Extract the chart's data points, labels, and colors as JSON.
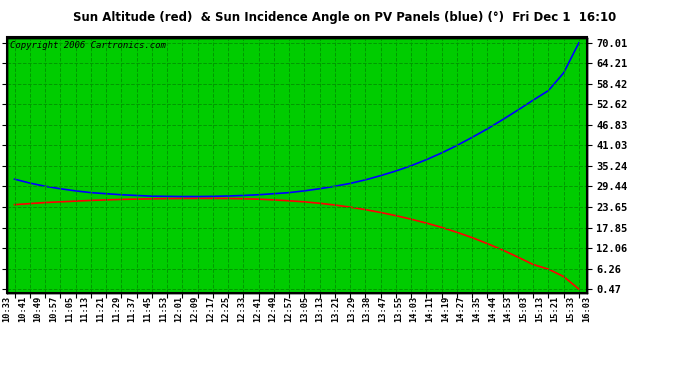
{
  "title": "Sun Altitude (red)  & Sun Incidence Angle on PV Panels (blue) (°)  Fri Dec 1  16:10",
  "copyright": "Copyright 2006 Cartronics.com",
  "plot_bg_color": "#00cc00",
  "grid_color": "#009900",
  "yticks": [
    0.47,
    6.26,
    12.06,
    17.85,
    23.65,
    29.44,
    35.24,
    41.03,
    46.83,
    52.62,
    58.42,
    64.21,
    70.01
  ],
  "ylim_min": -0.5,
  "ylim_max": 71.5,
  "x_labels": [
    "10:33",
    "10:41",
    "10:49",
    "10:57",
    "11:05",
    "11:13",
    "11:21",
    "11:29",
    "11:37",
    "11:45",
    "11:53",
    "12:01",
    "12:09",
    "12:17",
    "12:25",
    "12:33",
    "12:41",
    "12:49",
    "12:57",
    "13:05",
    "13:13",
    "13:21",
    "13:29",
    "13:38",
    "13:47",
    "13:55",
    "14:03",
    "14:11",
    "14:19",
    "14:27",
    "14:35",
    "14:44",
    "14:53",
    "15:03",
    "15:13",
    "15:21",
    "15:33",
    "16:03"
  ],
  "red_y": [
    24.3,
    24.6,
    24.9,
    25.1,
    25.3,
    25.5,
    25.65,
    25.78,
    25.88,
    25.96,
    26.02,
    26.06,
    26.08,
    26.08,
    26.05,
    25.98,
    25.85,
    25.65,
    25.4,
    25.1,
    24.7,
    24.2,
    23.6,
    22.9,
    22.1,
    21.2,
    20.2,
    19.1,
    17.9,
    16.5,
    15.0,
    13.3,
    11.5,
    9.5,
    7.4,
    6.1,
    4.0,
    0.47
  ],
  "blue_y": [
    31.5,
    30.4,
    29.5,
    28.8,
    28.2,
    27.7,
    27.4,
    27.1,
    26.9,
    26.7,
    26.65,
    26.6,
    26.6,
    26.65,
    26.75,
    26.9,
    27.1,
    27.4,
    27.7,
    28.2,
    28.8,
    29.5,
    30.3,
    31.3,
    32.5,
    33.8,
    35.3,
    37.0,
    38.9,
    41.0,
    43.3,
    45.7,
    48.3,
    51.0,
    53.8,
    56.5,
    61.5,
    70.01
  ]
}
